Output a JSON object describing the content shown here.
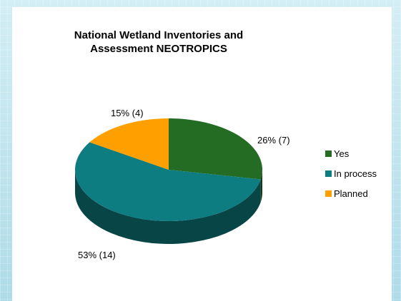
{
  "chart_data": {
    "type": "pie",
    "title": [
      "National Wetland Inventories and",
      "Assessment NEOTROPICS"
    ],
    "slices": [
      {
        "name": "Yes",
        "value": 7,
        "percent": 26,
        "label": "26% (7)",
        "color": "#246c24"
      },
      {
        "name": "In process",
        "value": 14,
        "percent": 53,
        "label": "53% (14)",
        "color": "#0e7d81"
      },
      {
        "name": "Planned",
        "value": 4,
        "percent": 15,
        "label": "15% (4)",
        "color": "#ffa000"
      }
    ],
    "legend_placement": "right",
    "three_d": true
  }
}
